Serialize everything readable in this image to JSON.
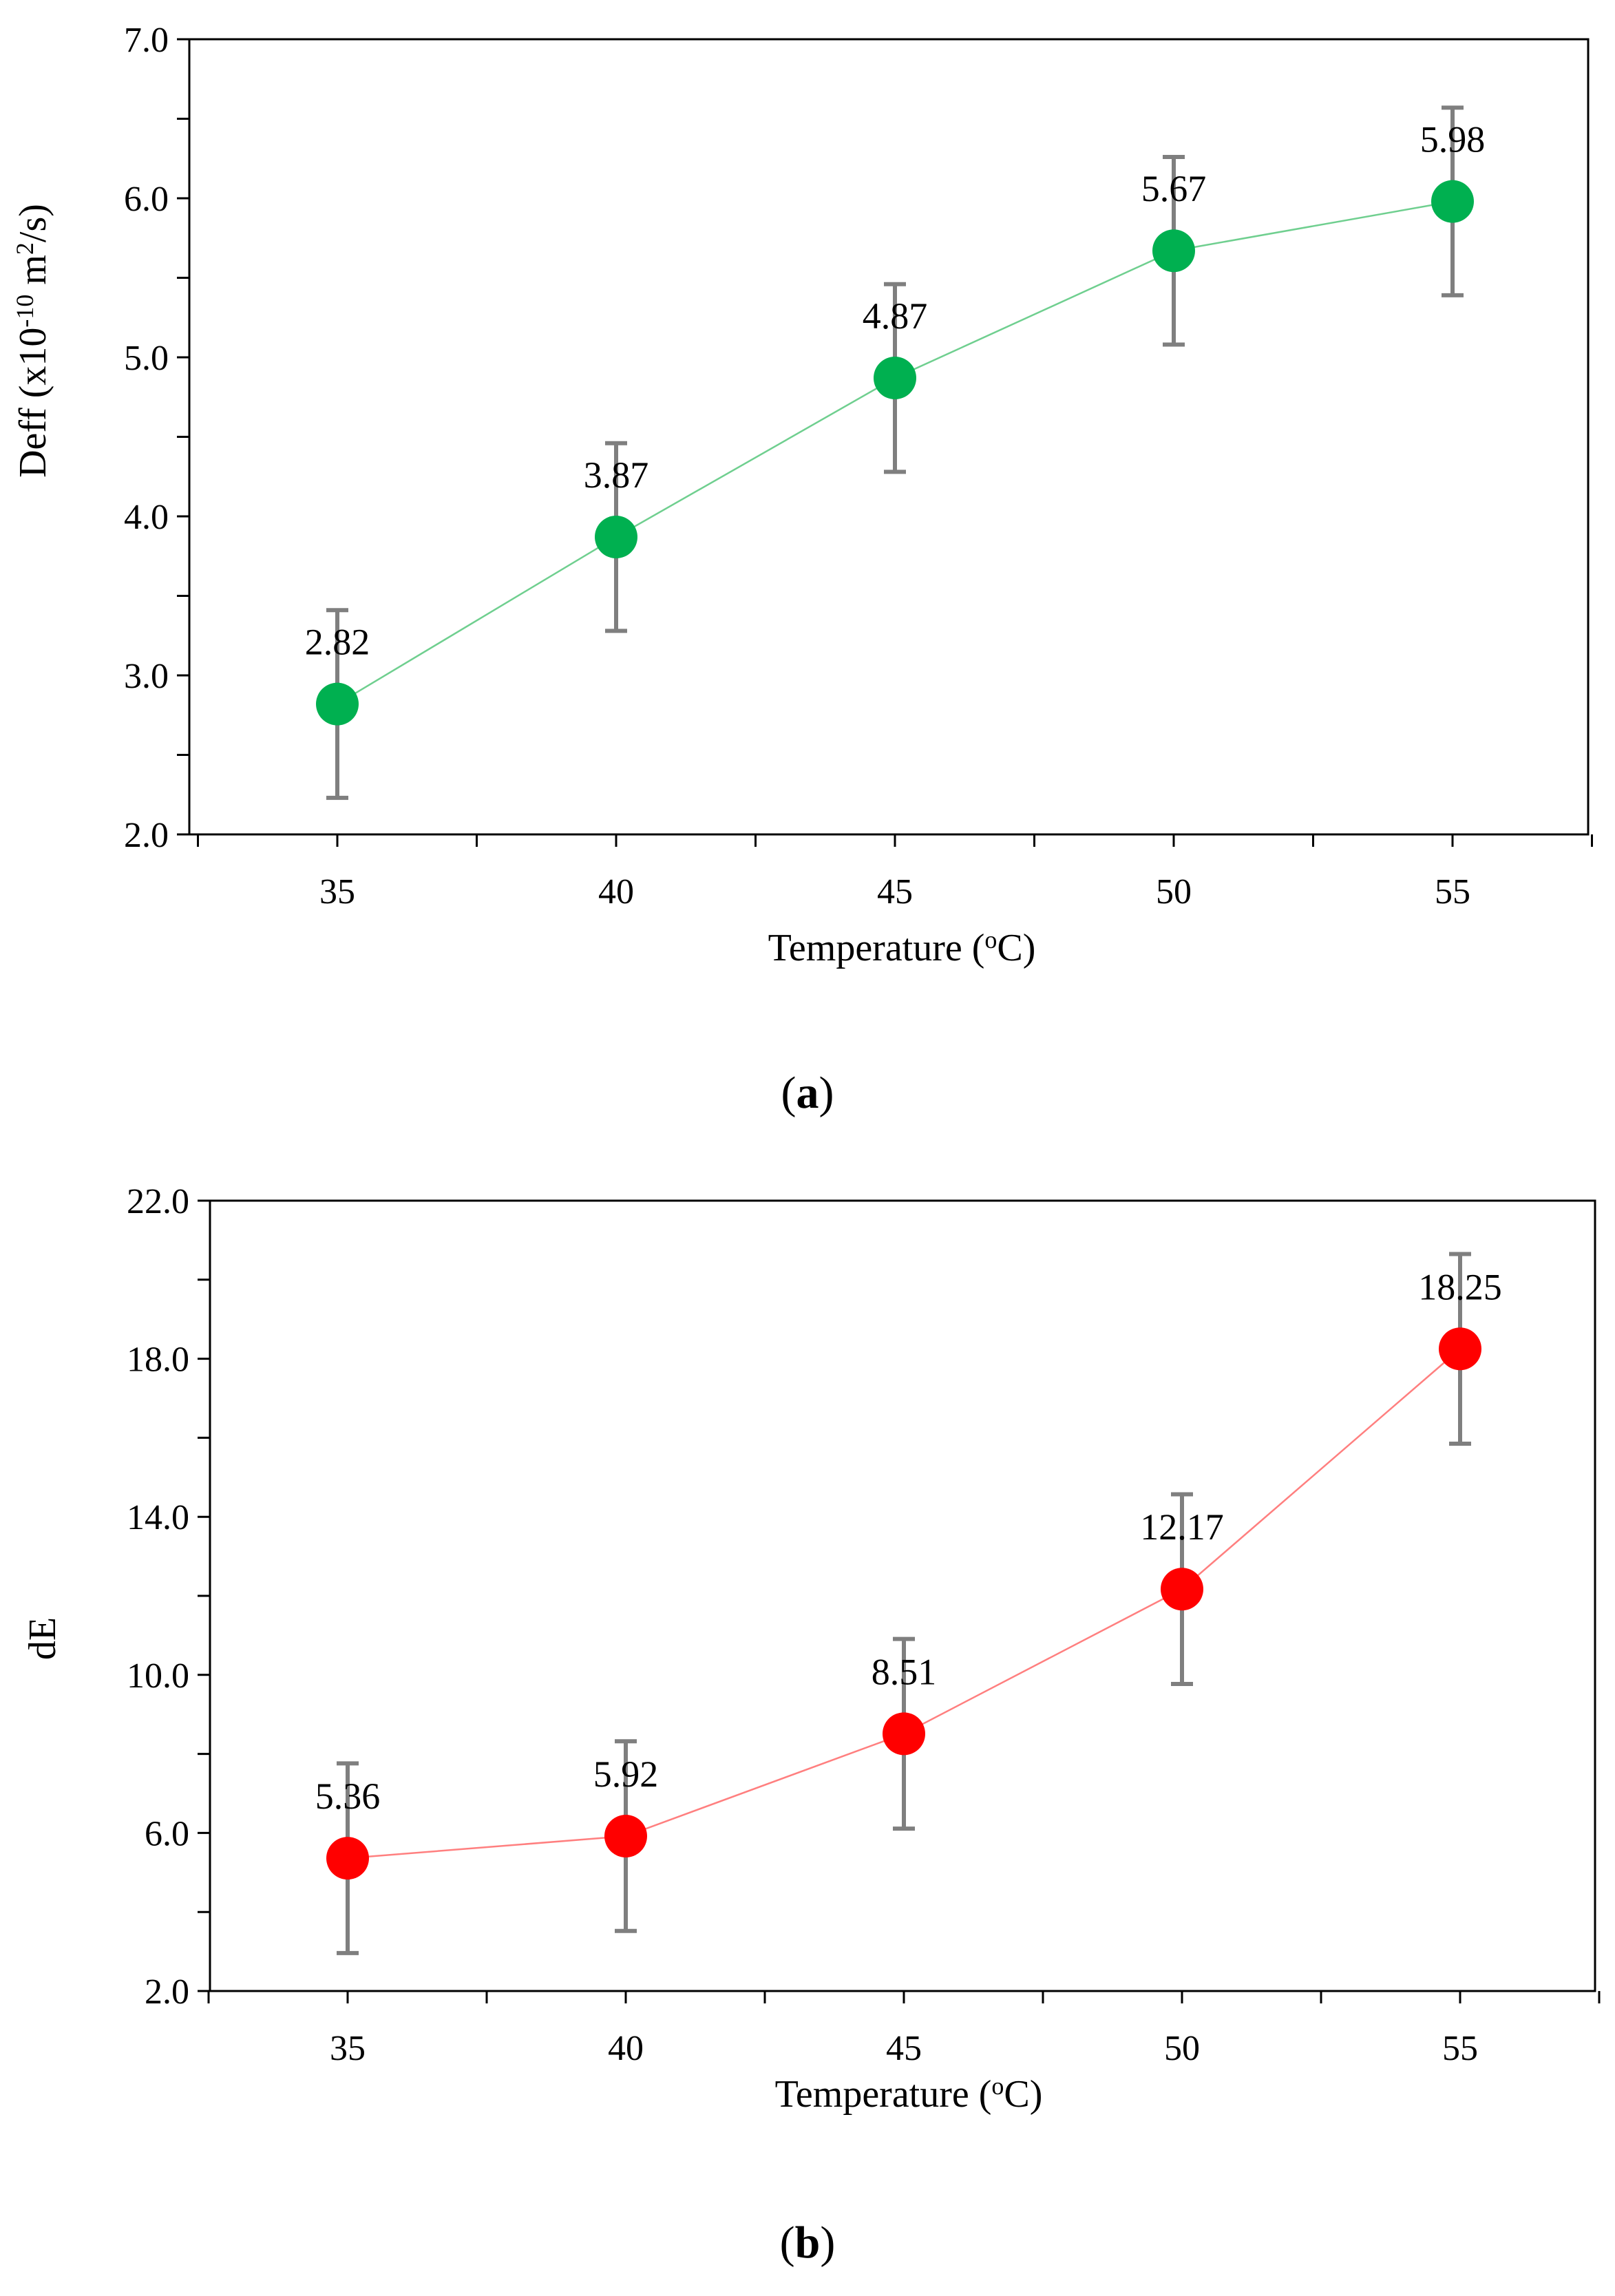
{
  "chart_data": [
    {
      "type": "line",
      "panel_label": "a",
      "xlabel": "Temperature (oC)",
      "xlabel_parts": {
        "before": "Temperature (",
        "superscript": "o",
        "after": "C)"
      },
      "ylabel": "Deff (x10-10 m2/s)",
      "ylabel_parts": {
        "before": "Deff (x10",
        "sup1": "-10",
        "middle": " m",
        "sup2": "2",
        "after": "/s)"
      },
      "categories": [
        "35",
        "40",
        "45",
        "50",
        "55"
      ],
      "series": [
        {
          "name": "Deff",
          "values": [
            2.82,
            3.87,
            4.87,
            5.67,
            5.98
          ],
          "error": [
            0.59,
            0.59,
            0.59,
            0.59,
            0.59
          ],
          "data_labels": [
            "2.82",
            "3.87",
            "4.87",
            "5.67",
            "5.98"
          ],
          "marker_color": "#00b050",
          "line_color": "#6fcf8f"
        }
      ],
      "ylim": [
        2.0,
        7.0
      ],
      "yticks": [
        2.0,
        3.0,
        4.0,
        5.0,
        6.0,
        7.0
      ],
      "ytick_labels": [
        "2.0",
        "3.0",
        "4.0",
        "5.0",
        "6.0",
        "7.0"
      ],
      "minor_ystep": 0.5,
      "grid": false,
      "error_bar_color": "#7f7f7f"
    },
    {
      "type": "line",
      "panel_label": "b",
      "xlabel": "Temperature (oC)",
      "xlabel_parts": {
        "before": "Temperature (",
        "superscript": "o",
        "after": "C)"
      },
      "ylabel": "dE",
      "categories": [
        "35",
        "40",
        "45",
        "50",
        "55"
      ],
      "series": [
        {
          "name": "dE",
          "values": [
            5.36,
            5.92,
            8.51,
            12.17,
            18.25
          ],
          "error": [
            2.4,
            2.4,
            2.4,
            2.4,
            2.4
          ],
          "data_labels": [
            "5.36",
            "5.92",
            "8.51",
            "12.17",
            "18.25"
          ],
          "marker_color": "#ff0000",
          "line_color": "#ff7f7f"
        }
      ],
      "ylim": [
        2.0,
        22.0
      ],
      "yticks": [
        2.0,
        6.0,
        10.0,
        14.0,
        18.0,
        22.0
      ],
      "ytick_labels": [
        "2.0",
        "6.0",
        "10.0",
        "14.0",
        "18.0",
        "22.0"
      ],
      "minor_ystep": 2.0,
      "grid": false,
      "error_bar_color": "#7f7f7f"
    }
  ]
}
